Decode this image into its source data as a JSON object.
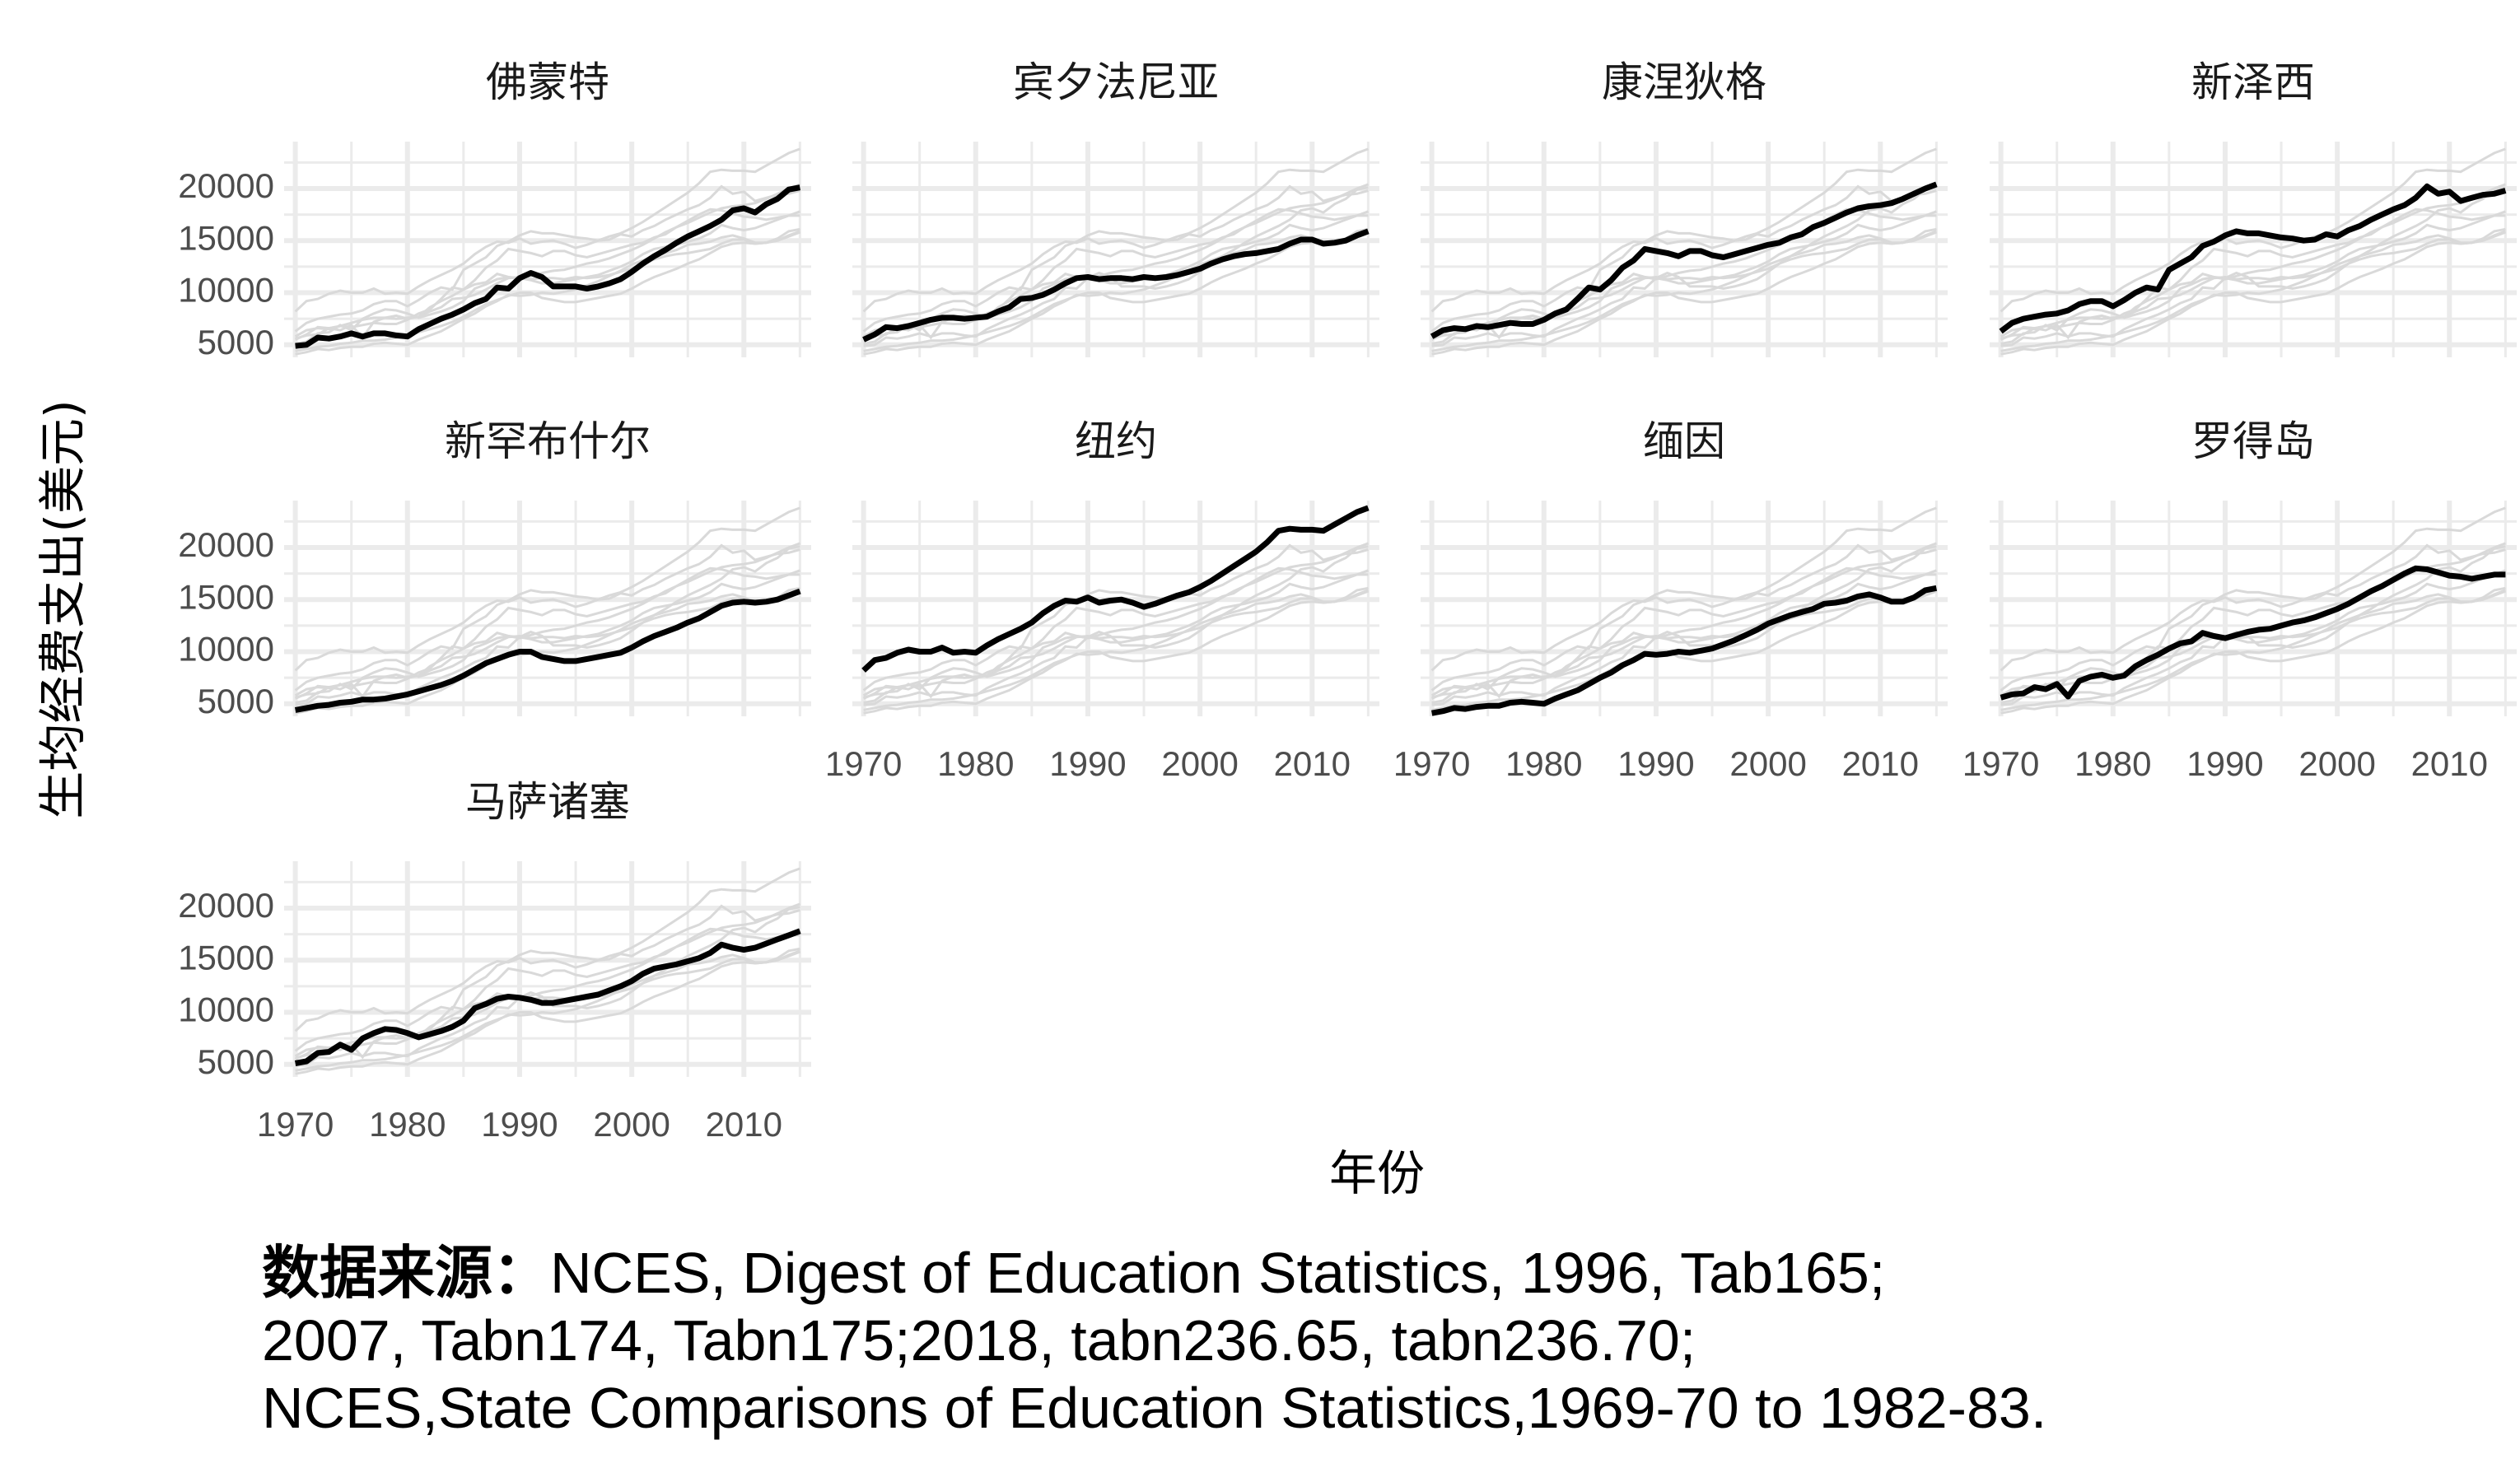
{
  "chart_data": {
    "type": "line",
    "facet": "wrap",
    "xlabel": "年份",
    "ylabel": "生均经费支出(美元)",
    "x_ticks": [
      1970,
      1980,
      1990,
      2000,
      2010
    ],
    "y_ticks": [
      5000,
      10000,
      15000,
      20000
    ],
    "xlim": [
      1969,
      2016
    ],
    "ylim": [
      3800,
      24500
    ],
    "grid": true,
    "highlight_color": "#000000",
    "background_color": "#d9d9d9",
    "grid_color": "#ebebeb",
    "x": [
      1970,
      1971,
      1972,
      1973,
      1974,
      1975,
      1976,
      1977,
      1978,
      1979,
      1980,
      1981,
      1982,
      1983,
      1984,
      1985,
      1986,
      1987,
      1988,
      1989,
      1990,
      1991,
      1992,
      1993,
      1994,
      1995,
      1996,
      1997,
      1998,
      1999,
      2000,
      2001,
      2002,
      2003,
      2004,
      2005,
      2006,
      2007,
      2008,
      2009,
      2010,
      2011,
      2012,
      2013,
      2014,
      2015
    ],
    "series": [
      {
        "name": "佛蒙特",
        "values": [
          4900,
          5000,
          5700,
          5600,
          5800,
          6100,
          5800,
          6100,
          6100,
          5900,
          5800,
          6500,
          7000,
          7500,
          7900,
          8400,
          9000,
          9400,
          10500,
          10400,
          11400,
          11900,
          11500,
          10600,
          10600,
          10600,
          10400,
          10600,
          10900,
          11300,
          12000,
          12800,
          13500,
          14100,
          14800,
          15400,
          15900,
          16400,
          17000,
          17900,
          18100,
          17700,
          18500,
          19000,
          19900,
          20100
        ]
      },
      {
        "name": "宾夕法尼亚",
        "values": [
          5500,
          6000,
          6700,
          6600,
          6800,
          7100,
          7400,
          7600,
          7600,
          7500,
          7600,
          7700,
          8200,
          8600,
          9400,
          9500,
          9800,
          10300,
          10900,
          11400,
          11500,
          11300,
          11400,
          11400,
          11300,
          11500,
          11400,
          11500,
          11700,
          12000,
          12300,
          12800,
          13200,
          13500,
          13700,
          13800,
          14000,
          14200,
          14700,
          15100,
          15100,
          14700,
          14800,
          15000,
          15500,
          15900
        ]
      },
      {
        "name": "康涅狄格",
        "values": [
          5800,
          6400,
          6600,
          6500,
          6800,
          6700,
          6900,
          7100,
          7000,
          7000,
          7400,
          8000,
          8400,
          9400,
          10500,
          10300,
          11200,
          12400,
          13100,
          14200,
          14000,
          13800,
          13500,
          14000,
          14000,
          13600,
          13400,
          13700,
          14000,
          14300,
          14600,
          14800,
          15300,
          15600,
          16300,
          16700,
          17200,
          17700,
          18100,
          18300,
          18400,
          18600,
          19000,
          19500,
          20000,
          20400
        ]
      },
      {
        "name": "新泽西",
        "values": [
          6300,
          7100,
          7500,
          7700,
          7900,
          8000,
          8300,
          8900,
          9200,
          9200,
          8700,
          9300,
          10000,
          10500,
          10300,
          12200,
          12800,
          13400,
          14500,
          14900,
          15500,
          15900,
          15700,
          15700,
          15500,
          15300,
          15200,
          15000,
          15100,
          15600,
          15400,
          16000,
          16400,
          17000,
          17500,
          18000,
          18400,
          19100,
          20200,
          19500,
          19700,
          18800,
          19100,
          19400,
          19500,
          19800
        ]
      },
      {
        "name": "新罕布什尔",
        "values": [
          4400,
          4600,
          4800,
          4900,
          5100,
          5200,
          5400,
          5400,
          5500,
          5700,
          5900,
          6200,
          6500,
          6800,
          7200,
          7700,
          8300,
          8900,
          9300,
          9700,
          10000,
          10000,
          9500,
          9300,
          9100,
          9100,
          9300,
          9500,
          9700,
          9900,
          10400,
          11000,
          11500,
          11900,
          12300,
          12800,
          13200,
          13800,
          14400,
          14700,
          14800,
          14700,
          14800,
          15000,
          15400,
          15800
        ]
      },
      {
        "name": "纽约",
        "values": [
          8200,
          9200,
          9400,
          9900,
          10200,
          10000,
          10000,
          10400,
          9900,
          10000,
          9900,
          10600,
          11200,
          11700,
          12200,
          12800,
          13700,
          14400,
          14900,
          14800,
          15200,
          14700,
          14900,
          15000,
          14700,
          14300,
          14600,
          15000,
          15400,
          15700,
          16200,
          16800,
          17500,
          18200,
          18900,
          19600,
          20500,
          21600,
          21800,
          21700,
          21700,
          21600,
          22200,
          22800,
          23400,
          23800
        ]
      },
      {
        "name": "缅因",
        "values": [
          4100,
          4300,
          4600,
          4500,
          4700,
          4800,
          4800,
          5100,
          5200,
          5100,
          5000,
          5500,
          5900,
          6300,
          6900,
          7500,
          8000,
          8700,
          9200,
          9800,
          9700,
          9800,
          10000,
          9900,
          10100,
          10300,
          10700,
          11100,
          11600,
          12100,
          12700,
          13100,
          13500,
          13800,
          14100,
          14600,
          14700,
          14900,
          15300,
          15500,
          15200,
          14800,
          14800,
          15200,
          15900,
          16100
        ]
      },
      {
        "name": "罗得岛",
        "values": [
          5600,
          5900,
          6000,
          6600,
          6400,
          6900,
          5700,
          7200,
          7600,
          7800,
          7500,
          7700,
          8600,
          9200,
          9700,
          10300,
          10800,
          11000,
          11800,
          11500,
          11300,
          11600,
          11900,
          12100,
          12200,
          12500,
          12800,
          13000,
          13300,
          13700,
          14100,
          14600,
          15200,
          15800,
          16300,
          16900,
          17500,
          18000,
          17900,
          17600,
          17300,
          17200,
          17000,
          17200,
          17400,
          17400
        ]
      },
      {
        "name": "马萨诸塞",
        "values": [
          5100,
          5300,
          6100,
          6200,
          6900,
          6400,
          7500,
          8000,
          8400,
          8300,
          8000,
          7600,
          7900,
          8200,
          8600,
          9200,
          10400,
          10800,
          11300,
          11500,
          11400,
          11200,
          10900,
          10900,
          11100,
          11300,
          11500,
          11700,
          12100,
          12500,
          13000,
          13700,
          14200,
          14400,
          14600,
          14900,
          15200,
          15700,
          16500,
          16200,
          16000,
          16200,
          16600,
          17000,
          17400,
          17800
        ]
      }
    ]
  },
  "caption": {
    "line1_label": "数据来源：",
    "line1_text": "NCES, Digest of Education Statistics, 1996, Tab165;",
    "line2": "2007, Tabn174, Tabn175;2018, tabn236.65, tabn236.70;",
    "line3": "NCES,State Comparisons of Education Statistics,1969-70 to 1982-83."
  }
}
